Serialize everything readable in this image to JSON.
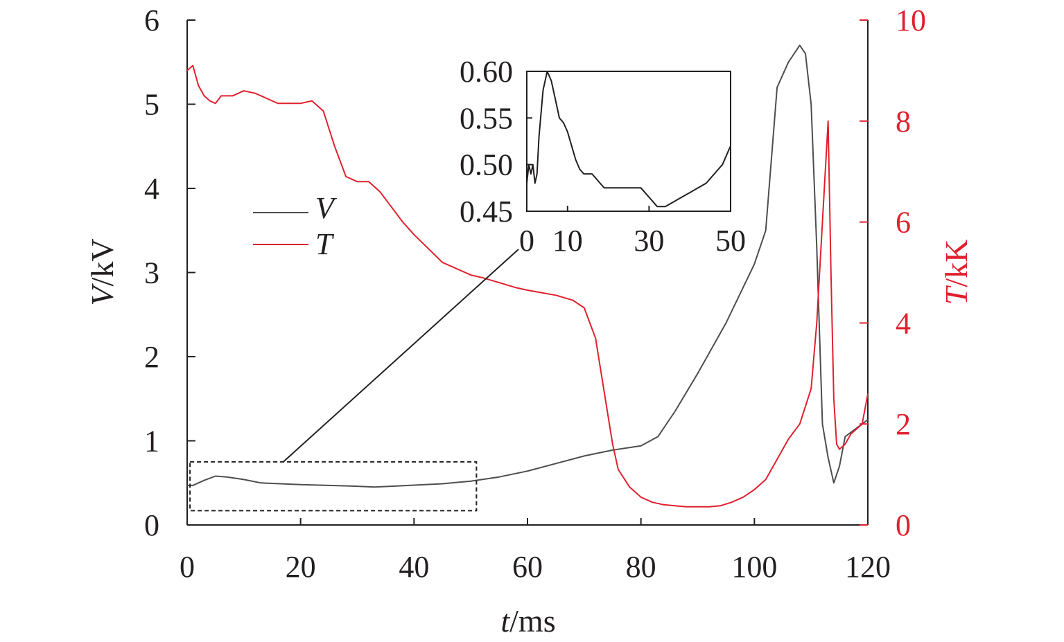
{
  "chart_data": {
    "type": "line",
    "x_axis": {
      "label_var": "t",
      "label_unit": "/ms",
      "range": [
        0,
        120
      ],
      "ticks": [
        "0",
        "20",
        "40",
        "60",
        "80",
        "100",
        "120"
      ]
    },
    "y_left": {
      "label_var": "V",
      "label_unit": "/kV",
      "range": [
        0,
        6
      ],
      "ticks": [
        "0",
        "1",
        "2",
        "3",
        "4",
        "5",
        "6"
      ],
      "color": "#231f20"
    },
    "y_right": {
      "label_var": "T",
      "label_unit": "/kK",
      "range": [
        0,
        10
      ],
      "ticks": [
        "0",
        "2",
        "4",
        "6",
        "8",
        "10"
      ],
      "color": "#e0202e"
    },
    "legend": [
      "V",
      "T"
    ],
    "legend_placement": "upper-left",
    "series": [
      {
        "name": "V",
        "axis": "left",
        "color": "#4d4d4f",
        "x": [
          0,
          1,
          3,
          5,
          7,
          10,
          13,
          20,
          30,
          33,
          36,
          45,
          50,
          55,
          60,
          65,
          70,
          75,
          80,
          83,
          86,
          90,
          95,
          100,
          102,
          104,
          106,
          108,
          109,
          110,
          111,
          112,
          113,
          114,
          115,
          116,
          117,
          118,
          119,
          120
        ],
        "values": [
          0.47,
          0.47,
          0.53,
          0.58,
          0.57,
          0.54,
          0.5,
          0.48,
          0.46,
          0.45,
          0.46,
          0.49,
          0.52,
          0.57,
          0.64,
          0.73,
          0.82,
          0.89,
          0.94,
          1.05,
          1.35,
          1.8,
          2.4,
          3.1,
          3.5,
          5.2,
          5.5,
          5.7,
          5.6,
          5.0,
          3.3,
          1.2,
          0.8,
          0.5,
          0.7,
          1.05,
          1.1,
          1.15,
          1.2,
          1.25
        ]
      },
      {
        "name": "T",
        "axis": "right",
        "color": "#e0202e",
        "x": [
          0,
          1,
          2,
          3,
          4,
          5,
          6,
          7,
          8,
          10,
          12,
          14,
          16,
          18,
          20,
          22,
          24,
          26,
          28,
          30,
          32,
          34,
          35,
          36,
          38,
          40,
          45,
          50,
          52,
          55,
          58,
          60,
          65,
          68,
          70,
          72,
          73,
          74,
          75,
          76,
          78,
          80,
          82,
          84,
          86,
          88,
          90,
          92,
          94,
          96,
          98,
          100,
          102,
          104,
          106,
          108,
          110,
          111,
          112,
          113,
          113.5,
          114,
          114.5,
          115,
          116,
          117,
          118,
          119,
          120
        ],
        "values": [
          9.0,
          9.1,
          8.7,
          8.5,
          8.4,
          8.35,
          8.5,
          8.5,
          8.5,
          8.6,
          8.55,
          8.45,
          8.35,
          8.35,
          8.35,
          8.4,
          8.2,
          7.5,
          6.9,
          6.8,
          6.8,
          6.6,
          6.45,
          6.3,
          6.0,
          5.75,
          5.2,
          4.95,
          4.9,
          4.8,
          4.7,
          4.65,
          4.55,
          4.45,
          4.3,
          3.7,
          3.0,
          2.3,
          1.6,
          1.1,
          0.75,
          0.55,
          0.45,
          0.4,
          0.38,
          0.36,
          0.36,
          0.36,
          0.38,
          0.45,
          0.55,
          0.7,
          0.9,
          1.3,
          1.7,
          2.0,
          2.7,
          4.0,
          6.0,
          8.0,
          5.0,
          2.5,
          1.6,
          1.5,
          1.6,
          1.8,
          1.9,
          2.0,
          2.6
        ]
      }
    ],
    "inset": {
      "x_range": [
        0,
        50
      ],
      "y_range": [
        0.45,
        0.6
      ],
      "x_ticks": [
        "0",
        "10",
        "30",
        "50"
      ],
      "y_ticks": [
        "0.45",
        "0.50",
        "0.55",
        "0.60"
      ],
      "series": {
        "name": "V",
        "x": [
          0,
          0.5,
          1,
          1.5,
          2,
          2.5,
          3,
          4,
          4.5,
          5,
          6,
          7,
          8,
          9,
          10,
          11,
          12,
          13,
          14,
          15,
          16,
          17,
          18,
          19,
          20,
          22,
          24,
          26,
          28,
          30,
          32,
          34,
          36,
          38,
          40,
          42,
          44,
          46,
          48,
          50
        ],
        "values": [
          0.48,
          0.5,
          0.49,
          0.5,
          0.48,
          0.49,
          0.53,
          0.58,
          0.59,
          0.6,
          0.59,
          0.57,
          0.55,
          0.545,
          0.535,
          0.52,
          0.505,
          0.495,
          0.49,
          0.49,
          0.49,
          0.485,
          0.48,
          0.475,
          0.475,
          0.475,
          0.475,
          0.475,
          0.475,
          0.465,
          0.455,
          0.455,
          0.46,
          0.465,
          0.47,
          0.475,
          0.48,
          0.49,
          0.5,
          0.52
        ]
      }
    },
    "zoom_box": {
      "x_range": [
        0.5,
        51
      ],
      "y_range": [
        0.17,
        0.75
      ]
    }
  }
}
